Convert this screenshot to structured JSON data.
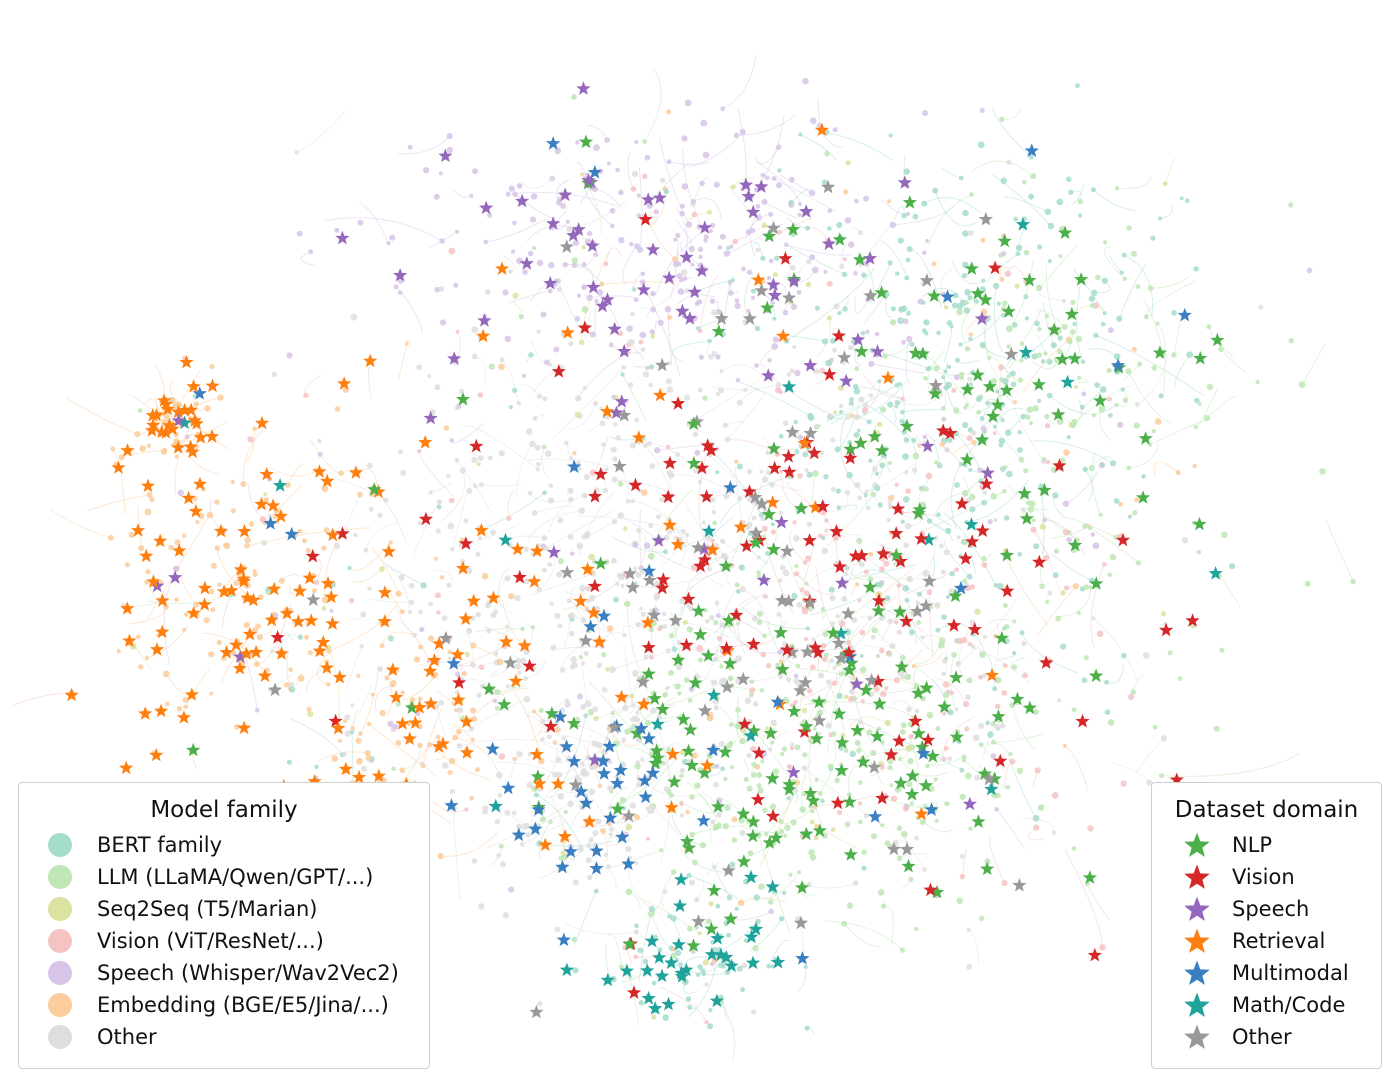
{
  "legend_model_family": {
    "title": "Model family",
    "items": [
      {
        "label": "BERT family",
        "color": "#a6dccb"
      },
      {
        "label": "LLM (LLaMA/Qwen/GPT/...)",
        "color": "#bfe6b6"
      },
      {
        "label": "Seq2Seq (T5/Marian)",
        "color": "#dce3a0"
      },
      {
        "label": "Vision (ViT/ResNet/...)",
        "color": "#f6c3c3"
      },
      {
        "label": "Speech (Whisper/Wav2Vec2)",
        "color": "#d8c4e6"
      },
      {
        "label": "Embedding (BGE/E5/Jina/...)",
        "color": "#fccc9c"
      },
      {
        "label": "Other",
        "color": "#dedede"
      }
    ]
  },
  "legend_dataset_domain": {
    "title": "Dataset domain",
    "items": [
      {
        "label": "NLP",
        "color": "#4daf4a"
      },
      {
        "label": "Vision",
        "color": "#d62728"
      },
      {
        "label": "Speech",
        "color": "#9467bd"
      },
      {
        "label": "Retrieval",
        "color": "#ff7f0e"
      },
      {
        "label": "Multimodal",
        "color": "#3a7fc1"
      },
      {
        "label": "Math/Code",
        "color": "#1fa39b"
      },
      {
        "label": "Other",
        "color": "#999999"
      }
    ]
  }
}
